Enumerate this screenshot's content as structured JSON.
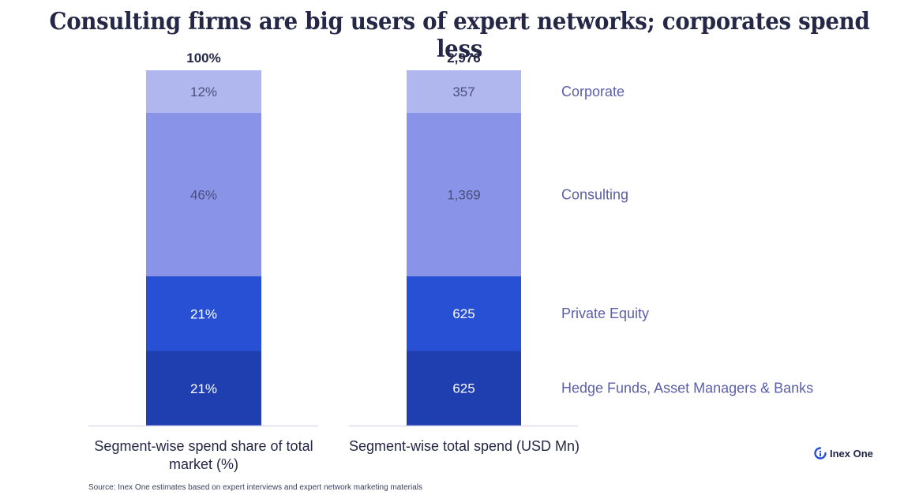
{
  "chart_data": [
    {
      "type": "bar",
      "stacked": true,
      "xlabel": "Segment-wise spend share of total market (%)",
      "total_label": "100%",
      "categories": [
        "Segment-wise spend share of total market (%)"
      ],
      "series": [
        {
          "name": "Hedge Funds, Asset Managers & Banks",
          "values": [
            21
          ],
          "label": "21%",
          "color": "#1f3fb0"
        },
        {
          "name": "Private Equity",
          "values": [
            21
          ],
          "label": "21%",
          "color": "#2750d4"
        },
        {
          "name": "Consulting",
          "values": [
            46
          ],
          "label": "46%",
          "color": "#8994e8"
        },
        {
          "name": "Corporate",
          "values": [
            12
          ],
          "label": "12%",
          "color": "#b0b7ee"
        }
      ],
      "ylim": [
        0,
        100
      ]
    },
    {
      "type": "bar",
      "stacked": true,
      "xlabel": "Segment-wise total spend (USD Mn)",
      "total_label": "2,976",
      "categories": [
        "Segment-wise total spend (USD Mn)"
      ],
      "series": [
        {
          "name": "Hedge Funds, Asset Managers & Banks",
          "values": [
            625
          ],
          "label": "625",
          "color": "#1f3fb0"
        },
        {
          "name": "Private Equity",
          "values": [
            625
          ],
          "label": "625",
          "color": "#2750d4"
        },
        {
          "name": "Consulting",
          "values": [
            1369
          ],
          "label": "1,369",
          "color": "#8994e8"
        },
        {
          "name": "Corporate",
          "values": [
            357
          ],
          "label": "357",
          "color": "#b0b7ee"
        }
      ],
      "ylim": [
        0,
        2976
      ]
    }
  ],
  "title": "Consulting firms are big users of expert networks; corporates spend less",
  "legend": [
    "Hedge Funds, Asset Managers & Banks",
    "Private Equity",
    "Consulting",
    "Corporate"
  ],
  "xlabels": [
    "Segment-wise spend share of total market (%)",
    "Segment-wise total spend (USD Mn)"
  ],
  "source": "Source: Inex One estimates based on expert interviews and expert network marketing materials",
  "brand": {
    "name": "Inex One",
    "icon": "inex-one-logo-icon"
  },
  "colors": {
    "title": "#242846",
    "legend_text": "#5b5fa8",
    "light_label": "#4a4f7a",
    "dark_label": "#ffffff",
    "axis": "#dcdcf0"
  }
}
